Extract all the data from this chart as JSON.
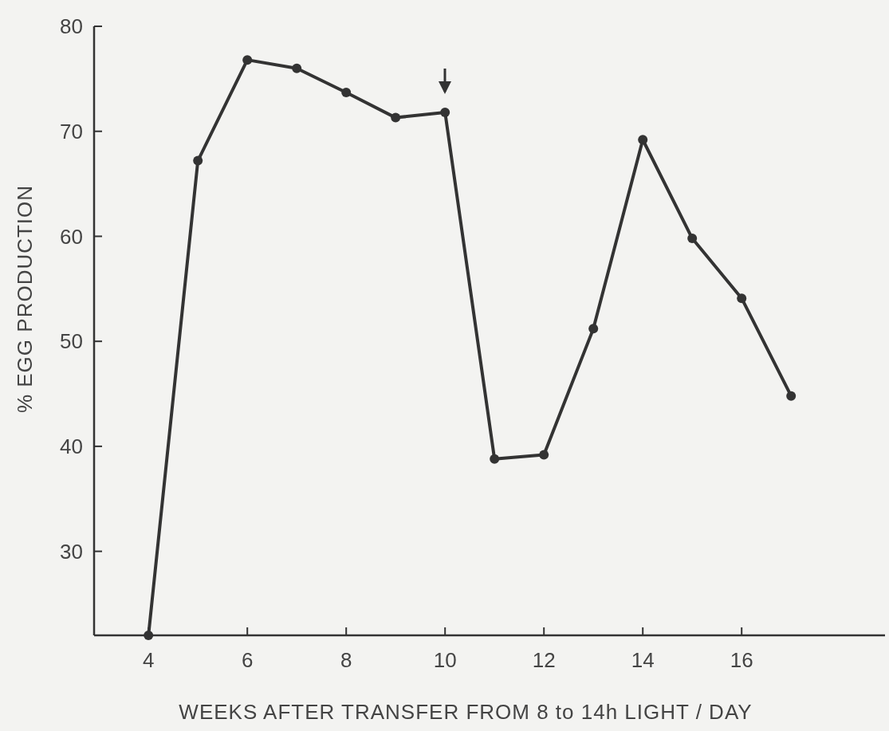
{
  "chart_data": {
    "type": "line",
    "xlabel": "WEEKS AFTER TRANSFER FROM 8 to 14h LIGHT / DAY",
    "ylabel": "% EGG PRODUCTION",
    "x": [
      4,
      5,
      6,
      7,
      8,
      9,
      10,
      11,
      12,
      13,
      14,
      15,
      16,
      17
    ],
    "series": [
      {
        "color": "#333333",
        "values": [
          22,
          67.2,
          76.8,
          76.0,
          73.7,
          71.3,
          71.8,
          38.8,
          39.2,
          51.2,
          69.2,
          59.8,
          54.1,
          44.8
        ]
      }
    ],
    "xlim": [
      2.9,
      18.9
    ],
    "xticks": [
      4,
      6,
      8,
      10,
      12,
      14,
      16
    ],
    "ylim": [
      22,
      80
    ],
    "yticks": [
      30,
      40,
      50,
      60,
      70,
      80
    ],
    "marker": "circle",
    "line_style": "solid",
    "grid": false
  }
}
